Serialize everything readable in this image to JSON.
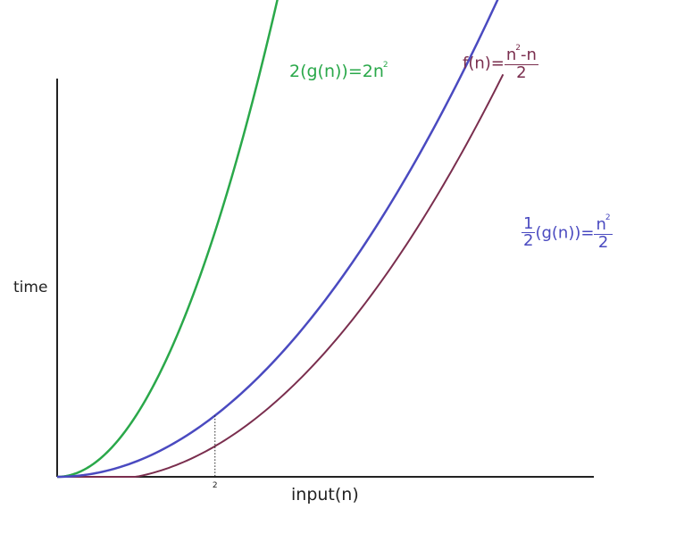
{
  "chart_data": {
    "type": "line",
    "xlabel": "input(n)",
    "ylabel": "time",
    "x_ticks": [
      "2"
    ],
    "grid": false,
    "axis_x_range": [
      0,
      6.8
    ],
    "axis_y_range": [
      0,
      13
    ],
    "series": [
      {
        "name": "2(g(n))=2n²",
        "color": "#2aa84a",
        "expr": "2n^2",
        "x_end": 3.45
      },
      {
        "name": "f(n)=(n²-n)/2",
        "color": "#7a2e4e",
        "expr": "(n^2-n)/2",
        "x_end": 5.65
      },
      {
        "name": "1/2(g(n))=n²/2",
        "color": "#4a4ac0",
        "expr": "n^2/2",
        "x_end": 6.8
      }
    ],
    "annotations": [
      {
        "type": "vertical-dotted-line",
        "x": 2
      }
    ]
  },
  "labels": {
    "green": {
      "lhs": "2(g(n))=2n",
      "sup": "2"
    },
    "purple": {
      "lhs": "f(n)=",
      "num": "n",
      "num_sup": "2",
      "num_rest": "-n",
      "den": "2"
    },
    "blue": {
      "coef_num": "1",
      "coef_den": "2",
      "mid": "(g(n))=",
      "num": "n",
      "num_sup": "2",
      "den": "2"
    }
  }
}
